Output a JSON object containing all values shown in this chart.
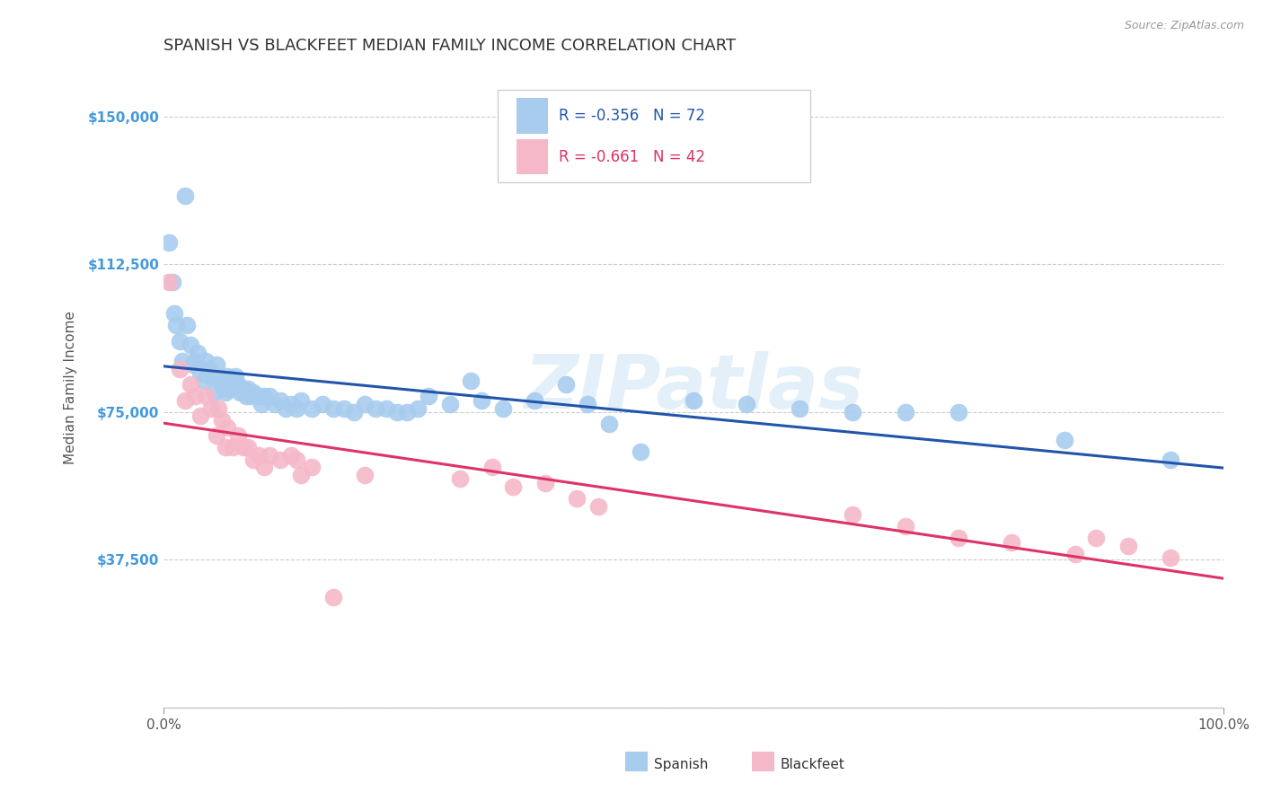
{
  "title": "SPANISH VS BLACKFEET MEDIAN FAMILY INCOME CORRELATION CHART",
  "source_text": "Source: ZipAtlas.com",
  "ylabel": "Median Family Income",
  "xlim": [
    0,
    1.0
  ],
  "ylim": [
    0,
    162500
  ],
  "yticks": [
    0,
    37500,
    75000,
    112500,
    150000
  ],
  "ytick_labels": [
    "",
    "$37,500",
    "$75,000",
    "$112,500",
    "$150,000"
  ],
  "xtick_labels": [
    "0.0%",
    "100.0%"
  ],
  "spanish_color": "#a8ccee",
  "blackfeet_color": "#f5b8c8",
  "spanish_line_color": "#2255aa",
  "blackfeet_line_color": "#dd3366",
  "legend_label_spanish": "R = -0.356   N = 72",
  "legend_label_blackfeet": "R = -0.661   N = 42",
  "legend_bottom_spanish": "Spanish",
  "legend_bottom_blackfeet": "Blackfeet",
  "watermark": "ZIPatlas",
  "title_fontsize": 13,
  "label_fontsize": 11,
  "tick_fontsize": 11,
  "background_color": "#ffffff",
  "grid_color": "#cccccc",
  "axis_label_color": "#4499dd",
  "spanish_scatter_x": [
    0.005,
    0.008,
    0.01,
    0.012,
    0.015,
    0.018,
    0.02,
    0.022,
    0.025,
    0.028,
    0.03,
    0.032,
    0.035,
    0.038,
    0.04,
    0.042,
    0.045,
    0.048,
    0.05,
    0.052,
    0.055,
    0.058,
    0.06,
    0.062,
    0.065,
    0.068,
    0.07,
    0.072,
    0.075,
    0.078,
    0.08,
    0.082,
    0.085,
    0.09,
    0.092,
    0.095,
    0.1,
    0.105,
    0.11,
    0.115,
    0.12,
    0.125,
    0.13,
    0.14,
    0.15,
    0.16,
    0.17,
    0.18,
    0.19,
    0.2,
    0.21,
    0.22,
    0.23,
    0.24,
    0.25,
    0.27,
    0.29,
    0.3,
    0.32,
    0.35,
    0.38,
    0.4,
    0.42,
    0.45,
    0.5,
    0.55,
    0.6,
    0.65,
    0.7,
    0.75,
    0.85,
    0.95
  ],
  "spanish_scatter_y": [
    118000,
    108000,
    100000,
    97000,
    93000,
    88000,
    130000,
    97000,
    92000,
    87000,
    88000,
    90000,
    85000,
    83000,
    88000,
    86000,
    84000,
    80000,
    87000,
    84000,
    82000,
    80000,
    84000,
    81000,
    83000,
    84000,
    82000,
    80000,
    81000,
    79000,
    81000,
    79000,
    80000,
    79000,
    77000,
    79000,
    79000,
    77000,
    78000,
    76000,
    77000,
    76000,
    78000,
    76000,
    77000,
    76000,
    76000,
    75000,
    77000,
    76000,
    76000,
    75000,
    75000,
    76000,
    79000,
    77000,
    83000,
    78000,
    76000,
    78000,
    82000,
    77000,
    72000,
    65000,
    78000,
    77000,
    76000,
    75000,
    75000,
    75000,
    68000,
    63000
  ],
  "blackfeet_scatter_x": [
    0.005,
    0.015,
    0.02,
    0.025,
    0.03,
    0.035,
    0.04,
    0.045,
    0.05,
    0.052,
    0.055,
    0.058,
    0.06,
    0.065,
    0.07,
    0.075,
    0.08,
    0.085,
    0.09,
    0.095,
    0.1,
    0.11,
    0.12,
    0.125,
    0.13,
    0.14,
    0.16,
    0.19,
    0.28,
    0.31,
    0.33,
    0.36,
    0.39,
    0.41,
    0.65,
    0.7,
    0.75,
    0.8,
    0.86,
    0.88,
    0.91,
    0.95
  ],
  "blackfeet_scatter_y": [
    108000,
    86000,
    78000,
    82000,
    79000,
    74000,
    79000,
    76000,
    69000,
    76000,
    73000,
    66000,
    71000,
    66000,
    69000,
    66000,
    66000,
    63000,
    64000,
    61000,
    64000,
    63000,
    64000,
    63000,
    59000,
    61000,
    28000,
    59000,
    58000,
    61000,
    56000,
    57000,
    53000,
    51000,
    49000,
    46000,
    43000,
    42000,
    39000,
    43000,
    41000,
    38000
  ]
}
